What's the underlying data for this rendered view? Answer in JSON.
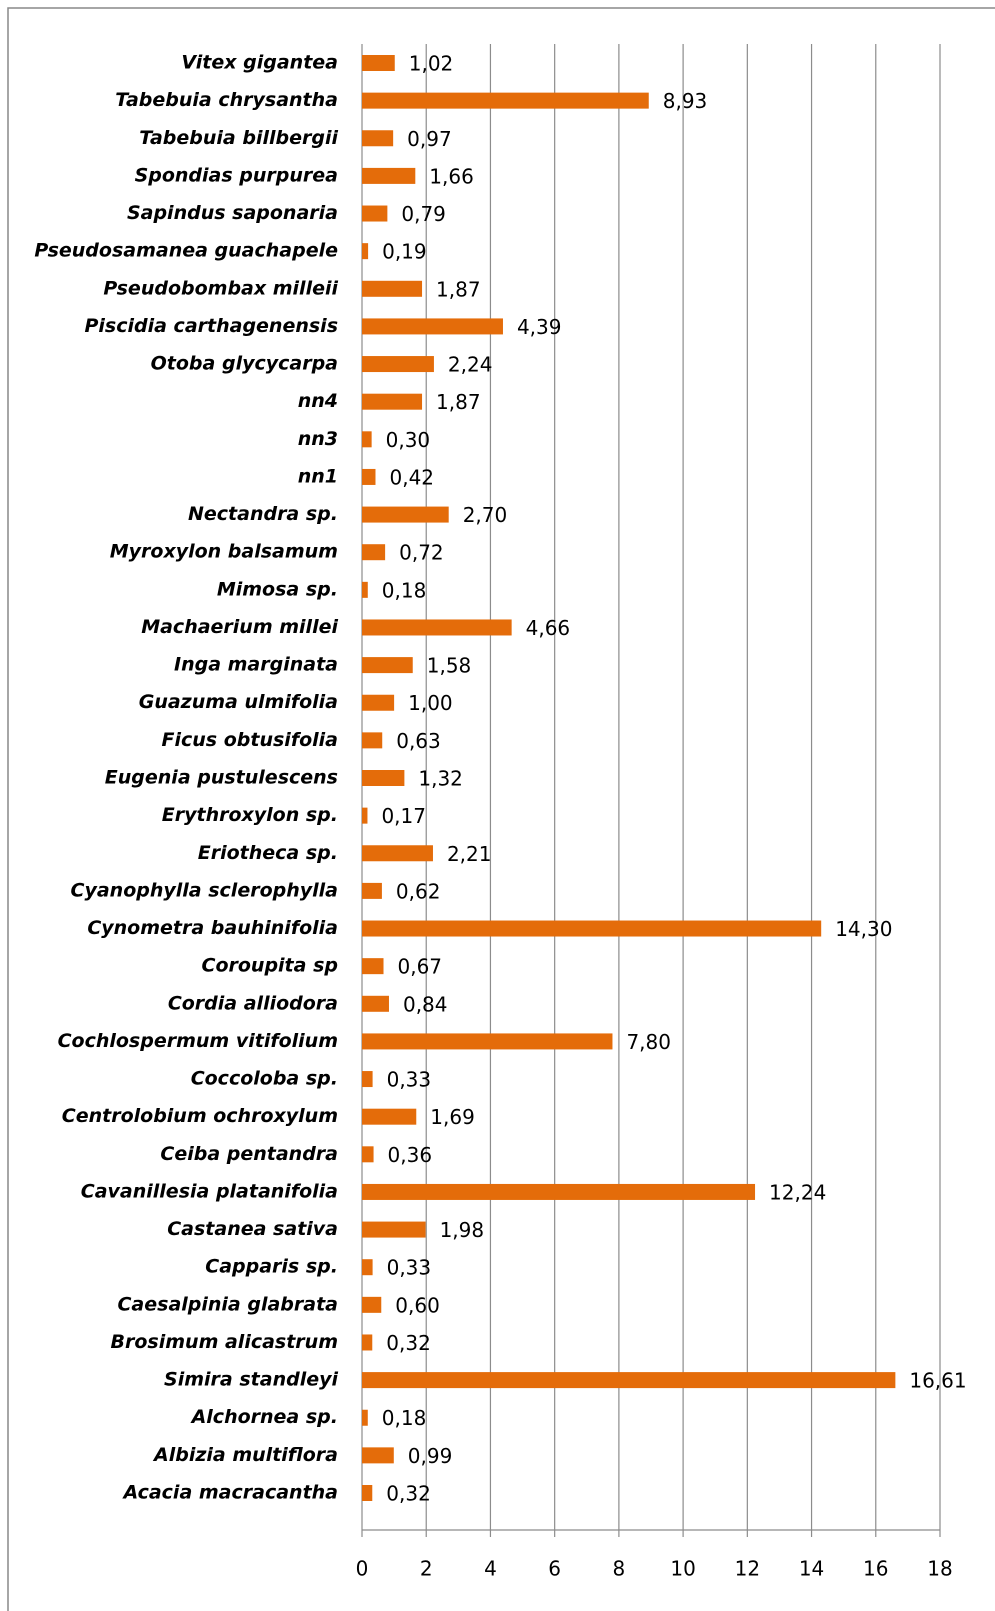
{
  "chart_data": {
    "type": "hbar",
    "categories": [
      "Vitex gigantea",
      "Tabebuia chrysantha",
      "Tabebuia billbergii",
      "Spondias purpurea",
      "Sapindus saponaria",
      "Pseudosamanea guachapele",
      "Pseudobombax milleii",
      "Piscidia carthagenensis",
      "Otoba glycycarpa",
      "nn4",
      "nn3",
      "nn1",
      "Nectandra sp.",
      "Myroxylon balsamum",
      "Mimosa sp.",
      "Machaerium millei",
      "Inga marginata",
      "Guazuma ulmifolia",
      "Ficus obtusifolia",
      "Eugenia pustulescens",
      "Erythroxylon sp.",
      "Eriotheca sp.",
      "Cyanophylla sclerophylla",
      "Cynometra bauhinifolia",
      "Coroupita sp",
      "Cordia alliodora",
      "Cochlospermum vitifolium",
      "Coccoloba sp.",
      "Centrolobium ochroxylum",
      "Ceiba pentandra",
      "Cavanillesia platanifolia",
      "Castanea sativa",
      "Capparis sp.",
      "Caesalpinia glabrata",
      "Brosimum alicastrum",
      "Simira standleyi",
      "Alchornea sp.",
      "Albizia multiflora",
      "Acacia macracantha"
    ],
    "values": [
      1.02,
      8.93,
      0.97,
      1.66,
      0.79,
      0.19,
      1.87,
      4.39,
      2.24,
      1.87,
      0.3,
      0.42,
      2.7,
      0.72,
      0.18,
      4.66,
      1.58,
      1.0,
      0.63,
      1.32,
      0.17,
      2.21,
      0.62,
      14.3,
      0.67,
      0.84,
      7.8,
      0.33,
      1.69,
      0.36,
      12.24,
      1.98,
      0.33,
      0.6,
      0.32,
      16.61,
      0.18,
      0.99,
      0.32
    ],
    "value_labels": [
      "1,02",
      "8,93",
      "0,97",
      "1,66",
      "0,79",
      "0,19",
      "1,87",
      "4,39",
      "2,24",
      "1,87",
      "0,30",
      "0,42",
      "2,70",
      "0,72",
      "0,18",
      "4,66",
      "1,58",
      "1,00",
      "0,63",
      "1,32",
      "0,17",
      "2,21",
      "0,62",
      "14,30",
      "0,67",
      "0,84",
      "7,80",
      "0,33",
      "1,69",
      "0,36",
      "12,24",
      "1,98",
      "0,33",
      "0,60",
      "0,32",
      "16,61",
      "0,18",
      "0,99",
      "0,32"
    ],
    "color": "#e46c0a",
    "xlim": [
      0,
      18
    ],
    "xticks": [
      0,
      2,
      4,
      6,
      8,
      10,
      12,
      14,
      16,
      18
    ],
    "grid": true
  }
}
